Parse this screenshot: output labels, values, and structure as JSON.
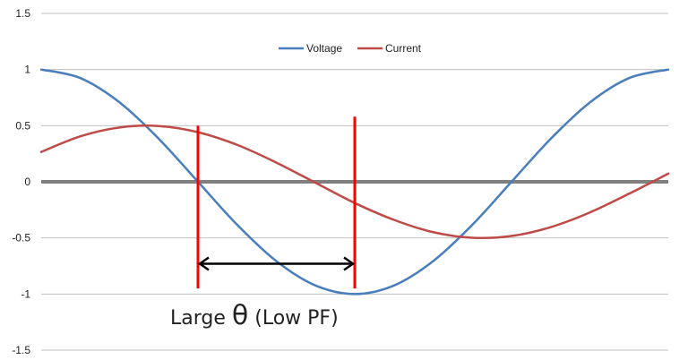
{
  "chart_data": {
    "type": "line",
    "title": "",
    "xlabel": "",
    "ylabel": "",
    "ylim": [
      -1.5,
      1.5
    ],
    "yticks": [
      "1.5",
      "1",
      "0.5",
      "0",
      "-0.5",
      "-1",
      "-1.5"
    ],
    "grid": true,
    "legend": "top-center",
    "x": [
      0,
      22.5,
      45,
      67.5,
      90,
      112.5,
      135,
      157.5,
      180,
      202.5,
      225,
      247.5,
      270,
      292.5,
      315,
      337.5,
      360
    ],
    "series": [
      {
        "name": "Voltage",
        "color": "#4a7ebb",
        "values": [
          1.0,
          0.924,
          0.707,
          0.383,
          0.0,
          -0.383,
          -0.707,
          -0.924,
          -1.0,
          -0.924,
          -0.707,
          -0.383,
          0.0,
          0.383,
          0.707,
          0.924,
          1.0
        ]
      },
      {
        "name": "Current",
        "color": "#be4b48",
        "values": [
          0.266,
          0.405,
          0.484,
          0.497,
          0.442,
          0.329,
          0.171,
          -0.009,
          -0.189,
          -0.339,
          -0.449,
          -0.499,
          -0.483,
          -0.404,
          -0.273,
          -0.106,
          0.073
        ]
      }
    ],
    "zero_line_color": "#7f7f7f",
    "marker_color": "#ff0000",
    "markers_x": [
      90,
      180
    ],
    "annotation": {
      "prefix": "Large ",
      "symbol": "θ",
      "suffix": " (Low PF)"
    }
  }
}
